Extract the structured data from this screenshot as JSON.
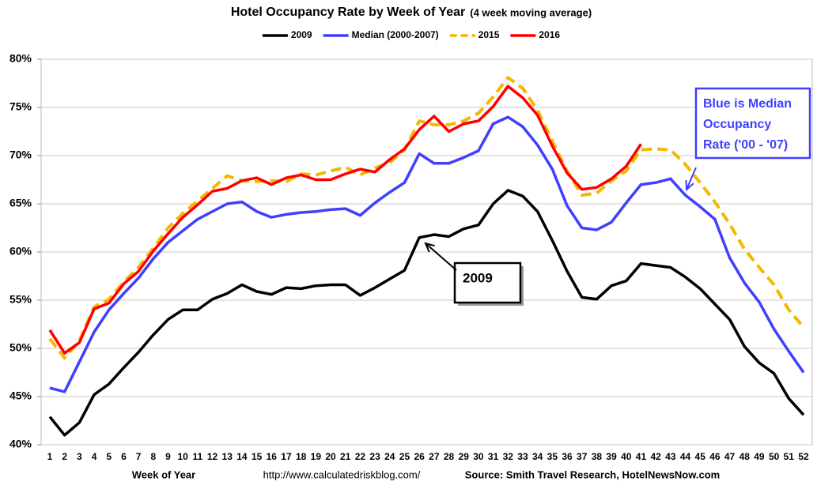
{
  "chart_data": {
    "type": "line",
    "title": "Hotel Occupancy Rate by  Week of Year",
    "subtitle": "(4 week moving average)",
    "x_label": "Week of Year",
    "url_note": "http://www.calculatedriskblog.com/",
    "source": "Source: Smith Travel Research, HotelNewsNow.com",
    "categories": [
      1,
      2,
      3,
      4,
      5,
      6,
      7,
      8,
      9,
      10,
      11,
      12,
      13,
      14,
      15,
      16,
      17,
      18,
      19,
      20,
      21,
      22,
      23,
      24,
      25,
      26,
      27,
      28,
      29,
      30,
      31,
      32,
      33,
      34,
      35,
      36,
      37,
      38,
      39,
      40,
      41,
      42,
      43,
      44,
      45,
      46,
      47,
      48,
      49,
      50,
      51,
      52
    ],
    "ylim": [
      40,
      80
    ],
    "yticks": [
      {
        "value": 40,
        "label": "40%"
      },
      {
        "value": 45,
        "label": "45%"
      },
      {
        "value": 50,
        "label": "50%"
      },
      {
        "value": 55,
        "label": "55%"
      },
      {
        "value": 60,
        "label": "60%"
      },
      {
        "value": 65,
        "label": "65%"
      },
      {
        "value": 70,
        "label": "70%"
      },
      {
        "value": 75,
        "label": "75%"
      },
      {
        "value": 80,
        "label": "80%"
      }
    ],
    "grid": true,
    "legend": "top",
    "series": [
      {
        "name": "2009",
        "color": "#000000",
        "values": [
          42.9,
          41.0,
          42.3,
          45.2,
          46.3,
          48.0,
          49.6,
          51.4,
          53.0,
          54.0,
          54.0,
          55.1,
          55.7,
          56.6,
          55.9,
          55.6,
          56.3,
          56.2,
          56.5,
          56.6,
          56.6,
          55.5,
          56.3,
          57.2,
          58.1,
          61.5,
          61.8,
          61.6,
          62.4,
          62.8,
          65.0,
          66.4,
          65.8,
          64.2,
          61.2,
          58.0,
          55.3,
          55.1,
          56.5,
          57.0,
          58.8,
          58.6,
          58.4,
          57.4,
          56.2,
          54.6,
          53.0,
          50.2,
          48.5,
          47.4,
          44.8,
          43.1
        ]
      },
      {
        "name": "Median (2000-2007)",
        "color": "#3f3fff",
        "values": [
          45.9,
          45.5,
          48.6,
          51.7,
          54.0,
          55.7,
          57.3,
          59.3,
          61.0,
          62.2,
          63.4,
          64.2,
          65.0,
          65.2,
          64.2,
          63.6,
          63.9,
          64.1,
          64.2,
          64.4,
          64.5,
          63.8,
          65.1,
          66.2,
          67.2,
          70.2,
          69.2,
          69.2,
          69.8,
          70.5,
          73.3,
          74.0,
          73.0,
          71.1,
          68.6,
          64.8,
          62.5,
          62.3,
          63.1,
          65.1,
          67.0,
          67.2,
          67.6,
          65.9,
          64.7,
          63.4,
          59.4,
          56.8,
          54.8,
          52.0,
          49.7,
          47.5
        ]
      },
      {
        "name": "2015",
        "color": "#f5b800",
        "dashed": true,
        "values": [
          51.0,
          49.0,
          50.8,
          54.3,
          55.1,
          56.9,
          58.4,
          60.4,
          62.5,
          64.0,
          65.3,
          66.6,
          67.9,
          67.4,
          67.3,
          67.4,
          67.3,
          68.1,
          68.0,
          68.4,
          68.8,
          68.0,
          68.7,
          69.3,
          70.6,
          73.6,
          73.2,
          73.2,
          73.6,
          74.4,
          76.1,
          78.1,
          77.0,
          74.7,
          71.5,
          68.4,
          65.9,
          66.1,
          67.4,
          68.4,
          70.6,
          70.7,
          70.6,
          69.1,
          67.2,
          65.2,
          62.9,
          60.3,
          58.4,
          56.6,
          54.0,
          52.2
        ]
      },
      {
        "name": "2016",
        "color": "#ff0000",
        "values": [
          51.9,
          49.5,
          50.6,
          54.1,
          54.7,
          56.7,
          58.0,
          60.1,
          61.9,
          63.6,
          64.9,
          66.3,
          66.6,
          67.4,
          67.7,
          67.0,
          67.7,
          68.0,
          67.5,
          67.5,
          68.1,
          68.6,
          68.3,
          69.6,
          70.7,
          72.7,
          74.1,
          72.5,
          73.3,
          73.6,
          75.1,
          77.2,
          76.0,
          74.2,
          71.0,
          68.2,
          66.5,
          66.7,
          67.6,
          68.9,
          71.2,
          null,
          null,
          null,
          null,
          null,
          null,
          null,
          null,
          null,
          null,
          null
        ]
      }
    ],
    "annotations": [
      {
        "lines": [
          "Blue is Median",
          "Occupancy",
          "Rate ('00 - '07)"
        ],
        "color": "#3f3fff"
      },
      {
        "lines": [
          "2009"
        ],
        "color": "#000000"
      }
    ]
  }
}
